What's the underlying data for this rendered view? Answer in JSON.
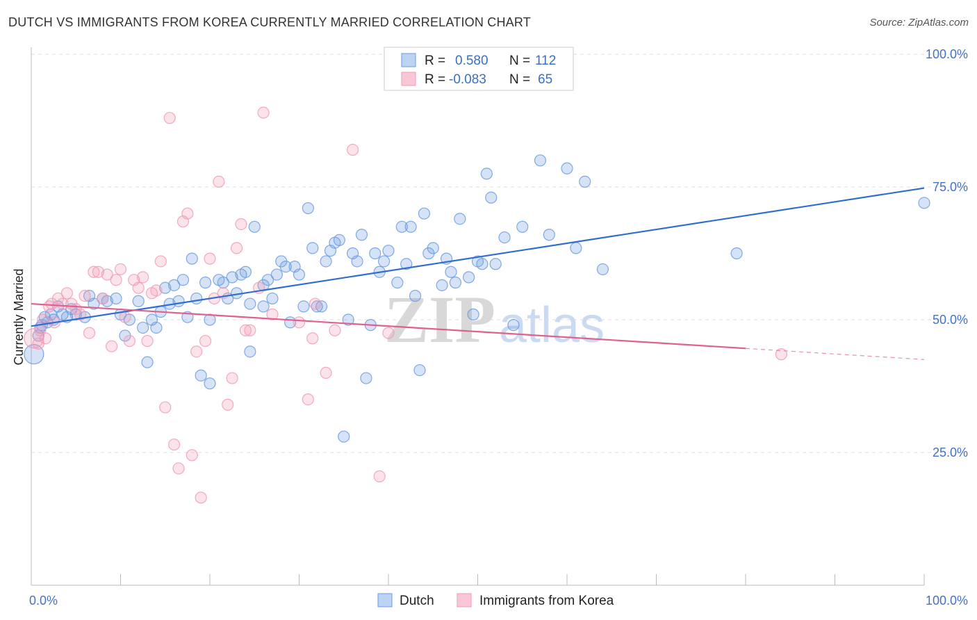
{
  "title": "DUTCH VS IMMIGRANTS FROM KOREA CURRENTLY MARRIED CORRELATION CHART",
  "source": "Source: ZipAtlas.com",
  "chart_data": {
    "type": "scatter",
    "title": "DUTCH VS IMMIGRANTS FROM KOREA CURRENTLY MARRIED CORRELATION CHART",
    "xlabel": "",
    "ylabel": "Currently Married",
    "xlim": [
      0,
      100
    ],
    "ylim": [
      0,
      105
    ],
    "x_tick_labels": [
      "0.0%",
      "100.0%"
    ],
    "y_ticks": [
      25,
      50,
      75,
      100
    ],
    "y_tick_labels": [
      "25.0%",
      "50.0%",
      "75.0%",
      "100.0%"
    ],
    "grid": true,
    "legend_position": "top-center",
    "watermark": [
      "ZIP",
      "atlas"
    ],
    "stats": [
      {
        "r_label": "R =",
        "r_value": "0.580",
        "n_label": "N =",
        "n_value": "112"
      },
      {
        "r_label": "R =",
        "r_value": "-0.083",
        "n_label": "N =",
        "n_value": "65"
      }
    ],
    "series": [
      {
        "name": "Dutch",
        "color": "#6a9be0",
        "line_color": "#2f6fcc",
        "trend": {
          "x": [
            0,
            100
          ],
          "y": [
            48.8,
            74.8
          ],
          "dash_from": null
        },
        "points": [
          [
            0.3,
            43.5
          ],
          [
            0.8,
            47
          ],
          [
            1,
            48.5
          ],
          [
            1.2,
            49
          ],
          [
            1.5,
            50.5
          ],
          [
            1.8,
            49.5
          ],
          [
            2.2,
            51
          ],
          [
            2.5,
            50
          ],
          [
            3,
            52.5
          ],
          [
            3.5,
            51
          ],
          [
            4,
            50.5
          ],
          [
            4.5,
            52
          ],
          [
            5,
            51
          ],
          [
            6,
            50.5
          ],
          [
            6.5,
            54.5
          ],
          [
            7,
            53
          ],
          [
            8,
            54
          ],
          [
            8.5,
            53.5
          ],
          [
            9.5,
            54
          ],
          [
            10,
            51
          ],
          [
            10.5,
            47
          ],
          [
            11,
            50
          ],
          [
            12,
            53.5
          ],
          [
            12.5,
            48.5
          ],
          [
            13,
            42
          ],
          [
            13.5,
            50
          ],
          [
            14,
            48.5
          ],
          [
            14.5,
            51.5
          ],
          [
            15,
            56
          ],
          [
            15.5,
            53
          ],
          [
            16,
            56.5
          ],
          [
            16.5,
            53.5
          ],
          [
            17,
            57.5
          ],
          [
            17.5,
            50.5
          ],
          [
            18,
            61.5
          ],
          [
            18.5,
            54
          ],
          [
            19,
            39.5
          ],
          [
            19.5,
            57
          ],
          [
            20,
            38
          ],
          [
            20,
            50
          ],
          [
            21,
            57.5
          ],
          [
            21.5,
            57
          ],
          [
            22,
            54
          ],
          [
            22.5,
            58
          ],
          [
            23,
            55
          ],
          [
            23.5,
            58.5
          ],
          [
            24,
            59
          ],
          [
            24.5,
            53
          ],
          [
            24.5,
            44
          ],
          [
            25,
            67.5
          ],
          [
            26,
            56.5
          ],
          [
            26,
            52.5
          ],
          [
            26.5,
            57.5
          ],
          [
            27,
            54
          ],
          [
            27.5,
            58.5
          ],
          [
            28,
            61
          ],
          [
            28.5,
            60
          ],
          [
            29,
            49.5
          ],
          [
            29.5,
            60
          ],
          [
            30,
            58.5
          ],
          [
            30.5,
            52.5
          ],
          [
            31,
            71
          ],
          [
            31.5,
            63.5
          ],
          [
            32,
            52.5
          ],
          [
            32.5,
            52.5
          ],
          [
            33,
            61
          ],
          [
            33.5,
            63
          ],
          [
            34,
            64.5
          ],
          [
            34.5,
            65
          ],
          [
            35,
            28
          ],
          [
            35.5,
            50
          ],
          [
            36,
            62.5
          ],
          [
            36.5,
            61
          ],
          [
            37,
            66
          ],
          [
            37.5,
            39
          ],
          [
            38,
            49
          ],
          [
            38.5,
            62.5
          ],
          [
            39,
            59
          ],
          [
            39.5,
            61
          ],
          [
            40,
            63
          ],
          [
            41,
            57
          ],
          [
            41.5,
            67.5
          ],
          [
            42,
            60.5
          ],
          [
            42.5,
            67.5
          ],
          [
            43,
            54.5
          ],
          [
            43.5,
            40.5
          ],
          [
            44,
            70
          ],
          [
            44.5,
            62.5
          ],
          [
            45,
            63.5
          ],
          [
            46,
            56.5
          ],
          [
            46.5,
            61.5
          ],
          [
            47,
            59
          ],
          [
            47.5,
            57
          ],
          [
            48,
            69
          ],
          [
            49,
            58
          ],
          [
            49.5,
            51
          ],
          [
            50,
            61
          ],
          [
            50.5,
            60.5
          ],
          [
            51,
            77.5
          ],
          [
            51.5,
            73
          ],
          [
            52,
            60.5
          ],
          [
            53,
            65.5
          ],
          [
            54,
            49
          ],
          [
            55,
            67.5
          ],
          [
            57,
            80
          ],
          [
            58,
            66
          ],
          [
            60,
            78.5
          ],
          [
            61,
            63.5
          ],
          [
            62,
            76
          ],
          [
            64,
            59.5
          ],
          [
            79,
            62.5
          ],
          [
            100,
            72
          ]
        ]
      },
      {
        "name": "Immigrants from Korea",
        "color": "#f29ab5",
        "line_color": "#e0608e",
        "trend": {
          "x": [
            0,
            100
          ],
          "y": [
            53.0,
            42.5
          ],
          "dash_from": 80
        },
        "points": [
          [
            0.3,
            46.5
          ],
          [
            0.8,
            45.5
          ],
          [
            1,
            48
          ],
          [
            1.3,
            50
          ],
          [
            1.6,
            46.5
          ],
          [
            2,
            52.5
          ],
          [
            2.3,
            53
          ],
          [
            2.6,
            49.5
          ],
          [
            3,
            54
          ],
          [
            3.5,
            53
          ],
          [
            4,
            55
          ],
          [
            4.5,
            53
          ],
          [
            5,
            52
          ],
          [
            5.5,
            51
          ],
          [
            6,
            54.5
          ],
          [
            6.5,
            47.5
          ],
          [
            7,
            59
          ],
          [
            7.5,
            59
          ],
          [
            8,
            54
          ],
          [
            8.5,
            58.5
          ],
          [
            9,
            45
          ],
          [
            9.5,
            57.5
          ],
          [
            10,
            59.5
          ],
          [
            10.5,
            50.5
          ],
          [
            11,
            46
          ],
          [
            11.5,
            57.5
          ],
          [
            12,
            56
          ],
          [
            12.5,
            58
          ],
          [
            13,
            46
          ],
          [
            13.5,
            55
          ],
          [
            14,
            55.5
          ],
          [
            14.5,
            61
          ],
          [
            15,
            33.5
          ],
          [
            15.5,
            88
          ],
          [
            16,
            26.5
          ],
          [
            16.5,
            22
          ],
          [
            17,
            68.5
          ],
          [
            17.5,
            70
          ],
          [
            18,
            24.5
          ],
          [
            18.5,
            44
          ],
          [
            19,
            16.5
          ],
          [
            19.5,
            46
          ],
          [
            20,
            61.5
          ],
          [
            20.5,
            54
          ],
          [
            21,
            76
          ],
          [
            21.5,
            55
          ],
          [
            22,
            34
          ],
          [
            22.5,
            39
          ],
          [
            23,
            63.5
          ],
          [
            23.5,
            68
          ],
          [
            24,
            48
          ],
          [
            24.5,
            48
          ],
          [
            25.5,
            56
          ],
          [
            26,
            89
          ],
          [
            27,
            51
          ],
          [
            30,
            49.5
          ],
          [
            31,
            35
          ],
          [
            31.5,
            46.5
          ],
          [
            31.8,
            53
          ],
          [
            33,
            40
          ],
          [
            34,
            48
          ],
          [
            36,
            82
          ],
          [
            39,
            20.5
          ],
          [
            40,
            47.5
          ],
          [
            84,
            43.5
          ]
        ]
      }
    ]
  }
}
